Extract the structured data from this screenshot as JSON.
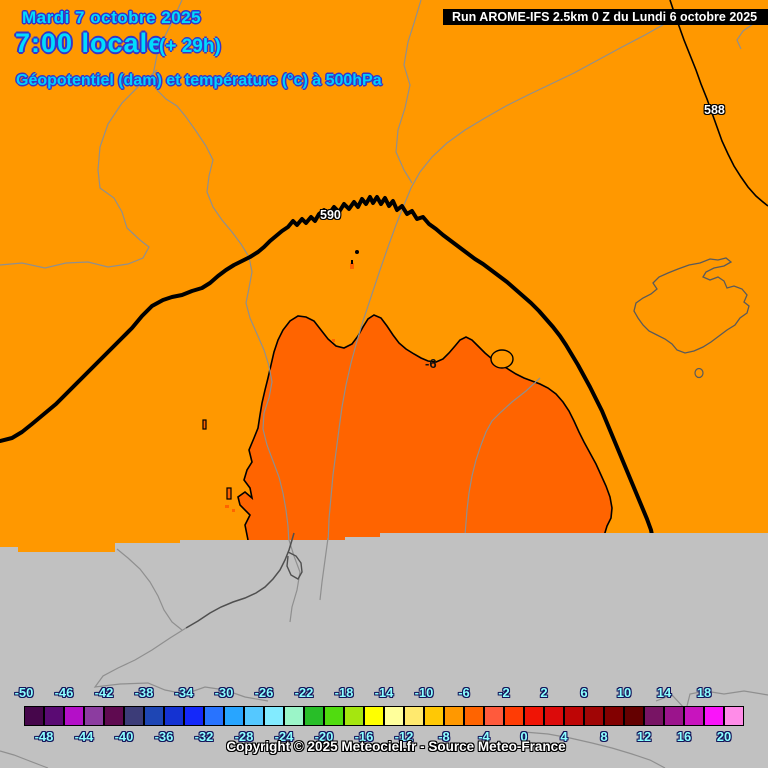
{
  "header": {
    "date": "Mardi 7 octobre 2025",
    "time_local": "7:00 locale",
    "offset": "(+ 29h)",
    "subtitle": "Géopotentiel (dam) et température (°c) à 500hPa",
    "text_color": "#00DCFF"
  },
  "run_info": {
    "label": "Run AROME-IFS 2.5km 0 Z du Lundi 6 octobre 2025"
  },
  "map": {
    "contour_labels": [
      {
        "text": "590"
      },
      {
        "text": "588"
      },
      {
        "text": "-6"
      }
    ],
    "colors": {
      "background_minus8_minus6": "#FF9800",
      "warm_region_minus6_minus4": "#FF6400",
      "no_data_gray": "#C1C1C1",
      "border_gray": "#8F8F8F",
      "coast_dark": "#4F4F4F",
      "island_outline": "#5A5A5A",
      "contour_black": "#000000"
    }
  },
  "scale": {
    "unit_step_degrees": 2,
    "top_labels": [
      "-50",
      "-46",
      "-42",
      "-38",
      "-34",
      "-30",
      "-26",
      "-22",
      "-18",
      "-14",
      "-10",
      "-6",
      "-2",
      "2",
      "6",
      "10",
      "14",
      "18"
    ],
    "bottom_labels": [
      "-48",
      "-44",
      "-40",
      "-36",
      "-32",
      "-28",
      "-24",
      "-20",
      "-16",
      "-12",
      "-8",
      "-4",
      "0",
      "4",
      "8",
      "12",
      "16",
      "20"
    ],
    "cell_colors": [
      "#46064B",
      "#5A0A73",
      "#B40FC8",
      "#8C3CA0",
      "#5F0A50",
      "#3C3C78",
      "#1E46B4",
      "#1432D2",
      "#1428FA",
      "#2873FF",
      "#28A5FF",
      "#55C8FF",
      "#82EBFF",
      "#9BF5C8",
      "#28BE28",
      "#50DC0F",
      "#A5E60F",
      "#FFFF00",
      "#FFFF9B",
      "#FFE96E",
      "#FFC805",
      "#FF9800",
      "#FF6400",
      "#FF5A3C",
      "#FF3C05",
      "#F01405",
      "#DC0A0A",
      "#BE0505",
      "#A00505",
      "#820000",
      "#640000",
      "#781464",
      "#9B148C",
      "#C814BE",
      "#FA14FA",
      "#FF8CE8"
    ]
  },
  "footer": {
    "copyright": "Copyright © 2025 Meteociel.fr - Source Meteo-France"
  }
}
